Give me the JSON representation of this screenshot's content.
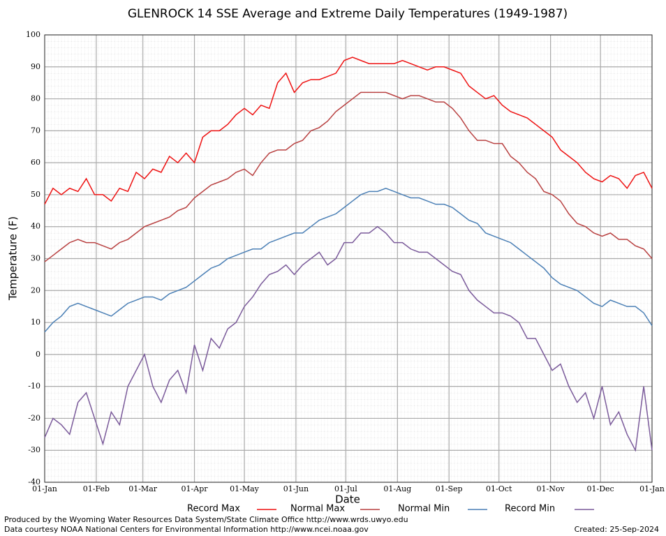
{
  "chart_data": {
    "type": "line",
    "title": "GLENROCK 14 SSE Average and Extreme Daily Temperatures (1949-1987)",
    "xlabel": "Date",
    "ylabel": "Temperature (F)",
    "x": [
      0,
      5,
      10,
      15,
      20,
      25,
      30,
      35,
      40,
      45,
      50,
      55,
      60,
      65,
      70,
      75,
      80,
      85,
      90,
      95,
      100,
      105,
      110,
      115,
      120,
      125,
      130,
      135,
      140,
      145,
      150,
      155,
      160,
      165,
      170,
      175,
      180,
      185,
      190,
      195,
      200,
      205,
      210,
      215,
      220,
      225,
      230,
      235,
      240,
      245,
      250,
      255,
      260,
      265,
      270,
      275,
      280,
      285,
      290,
      295,
      300,
      305,
      310,
      315,
      320,
      325,
      330,
      335,
      340,
      345,
      350,
      355,
      360,
      365
    ],
    "xlim": [
      0,
      365
    ],
    "xticks": [
      {
        "value": 0,
        "label": "01-Jan"
      },
      {
        "value": 31,
        "label": "01-Feb"
      },
      {
        "value": 59,
        "label": "01-Mar"
      },
      {
        "value": 90,
        "label": "01-Apr"
      },
      {
        "value": 120,
        "label": "01-May"
      },
      {
        "value": 151,
        "label": "01-Jun"
      },
      {
        "value": 181,
        "label": "01-Jul"
      },
      {
        "value": 212,
        "label": "01-Aug"
      },
      {
        "value": 243,
        "label": "01-Sep"
      },
      {
        "value": 273,
        "label": "01-Oct"
      },
      {
        "value": 304,
        "label": "01-Nov"
      },
      {
        "value": 334,
        "label": "01-Dec"
      },
      {
        "value": 365,
        "label": "01-Jan"
      }
    ],
    "ylim": [
      -40,
      100
    ],
    "yticks": [
      -40,
      -30,
      -20,
      -10,
      0,
      10,
      20,
      30,
      40,
      50,
      60,
      70,
      80,
      90,
      100
    ],
    "grid": true,
    "series": [
      {
        "name": "Record Max",
        "color": "#ee1111",
        "values": [
          47,
          52,
          50,
          52,
          51,
          55,
          50,
          50,
          48,
          52,
          51,
          57,
          55,
          58,
          57,
          62,
          60,
          63,
          60,
          68,
          70,
          70,
          72,
          75,
          77,
          75,
          78,
          77,
          85,
          88,
          82,
          85,
          86,
          86,
          87,
          88,
          92,
          93,
          92,
          91,
          91,
          91,
          91,
          92,
          91,
          90,
          89,
          90,
          90,
          89,
          88,
          84,
          82,
          80,
          81,
          78,
          76,
          75,
          74,
          72,
          70,
          68,
          64,
          62,
          60,
          57,
          55,
          54,
          56,
          55,
          52,
          56,
          57,
          52
        ]
      },
      {
        "name": "Normal Max",
        "color": "#b84040",
        "values": [
          29,
          31,
          33,
          35,
          36,
          35,
          35,
          34,
          33,
          35,
          36,
          38,
          40,
          41,
          42,
          43,
          45,
          46,
          49,
          51,
          53,
          54,
          55,
          57,
          58,
          56,
          60,
          63,
          64,
          64,
          66,
          67,
          70,
          71,
          73,
          76,
          78,
          80,
          82,
          82,
          82,
          82,
          81,
          80,
          81,
          81,
          80,
          79,
          79,
          77,
          74,
          70,
          67,
          67,
          66,
          66,
          62,
          60,
          57,
          55,
          51,
          50,
          48,
          44,
          41,
          40,
          38,
          37,
          38,
          36,
          36,
          34,
          33,
          30
        ]
      },
      {
        "name": "Normal Min",
        "color": "#4a7fb5",
        "values": [
          7,
          10,
          12,
          15,
          16,
          15,
          14,
          13,
          12,
          14,
          16,
          17,
          18,
          18,
          17,
          19,
          20,
          21,
          23,
          25,
          27,
          28,
          30,
          31,
          32,
          33,
          33,
          35,
          36,
          37,
          38,
          38,
          40,
          42,
          43,
          44,
          46,
          48,
          50,
          51,
          51,
          52,
          51,
          50,
          49,
          49,
          48,
          47,
          47,
          46,
          44,
          42,
          41,
          38,
          37,
          36,
          35,
          33,
          31,
          29,
          27,
          24,
          22,
          21,
          20,
          18,
          16,
          15,
          17,
          16,
          15,
          15,
          13,
          9
        ]
      },
      {
        "name": "Record Min",
        "color": "#7a5a9a",
        "values": [
          -26,
          -20,
          -22,
          -25,
          -15,
          -12,
          -20,
          -28,
          -18,
          -22,
          -10,
          -5,
          0,
          -10,
          -15,
          -8,
          -5,
          -12,
          3,
          -5,
          5,
          2,
          8,
          10,
          15,
          18,
          22,
          25,
          26,
          28,
          25,
          28,
          30,
          32,
          28,
          30,
          35,
          35,
          38,
          38,
          40,
          38,
          35,
          35,
          33,
          32,
          32,
          30,
          28,
          26,
          25,
          20,
          17,
          15,
          13,
          13,
          12,
          10,
          5,
          5,
          0,
          -5,
          -3,
          -10,
          -15,
          -12,
          -20,
          -10,
          -22,
          -18,
          -25,
          -30,
          -10,
          -30
        ]
      }
    ]
  },
  "notes": [
    "Produced by the Wyoming Water Resources Data System/State Climate Office http://www.wrds.uwyo.edu",
    "Data courtesy NOAA National Centers for Environmental Information http://www.ncei.noaa.gov"
  ],
  "created": "Created:  25-Sep-2024"
}
